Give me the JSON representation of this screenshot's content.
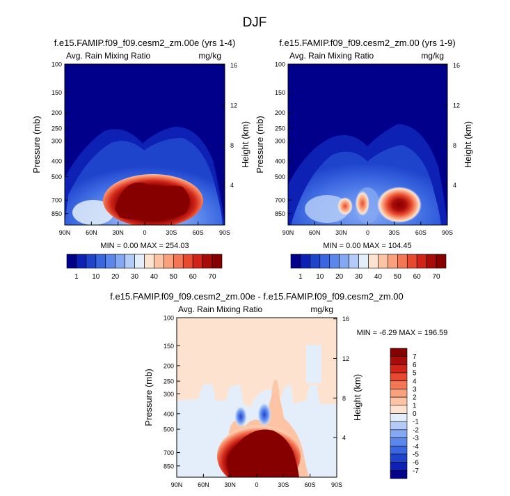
{
  "page_title": "DJF",
  "panels": [
    {
      "title": "f.e15.FAMIP.f09_f09.cesm2_zm.00e (yrs 1-4)",
      "left_label": "Avg. Rain Mixing Ratio",
      "right_label": "mg/kg",
      "stats": "MIN =  0.00  MAX = 254.03"
    },
    {
      "title": "f.e15.FAMIP.f09_f09.cesm2_zm.00 (yrs 1-9)",
      "left_label": "Avg. Rain Mixing Ratio",
      "right_label": "mg/kg",
      "stats": "MIN =  0.00  MAX = 104.45"
    },
    {
      "title": "f.e15.FAMIP.f09_f09.cesm2_zm.00e - f.e15.FAMIP.f09_f09.cesm2_zm.00",
      "left_label": "Avg. Rain Mixing Ratio",
      "right_label": "mg/kg",
      "stats": "MIN = -6.29  MAX = 196.59"
    }
  ],
  "axes": {
    "ylabel": "Pressure (mb)",
    "y2label": "Height (km)",
    "pressure_ticks": [
      100,
      150,
      200,
      250,
      300,
      400,
      500,
      700,
      850
    ],
    "height_ticks": [
      16,
      12,
      8,
      4
    ],
    "lat_ticks": [
      "90N",
      "60N",
      "30N",
      "0",
      "30S",
      "60S",
      "90S"
    ]
  },
  "colorbars": {
    "abs_labels": [
      "1",
      "10",
      "20",
      "30",
      "40",
      "50",
      "60",
      "70"
    ],
    "diff_labels": [
      "7",
      "6",
      "5",
      "4",
      "3",
      "2",
      "1",
      "0",
      "-1",
      "-2",
      "-3",
      "-4",
      "-5",
      "-6",
      "-7"
    ]
  },
  "colors": {
    "palette": [
      "#00008b",
      "#0d22b5",
      "#1f44cc",
      "#3a66e0",
      "#5b87ec",
      "#85a8f2",
      "#b3cbf6",
      "#e3eefa",
      "#fde3cf",
      "#fcc4a5",
      "#f9a07c",
      "#f47755",
      "#e84a30",
      "#cf2417",
      "#a80c08",
      "#870000"
    ]
  },
  "chart_data": [
    {
      "type": "heatmap",
      "title": "f.e15.FAMIP.f09_f09.cesm2_zm.00e (yrs 1-4)",
      "x_range": [
        "90N",
        "90S"
      ],
      "y_range_mb": [
        1000,
        100
      ],
      "units": "mg/kg",
      "levels": [
        1,
        10,
        20,
        30,
        40,
        50,
        60,
        70
      ],
      "min": 0.0,
      "max": 254.03,
      "features": [
        {
          "region": "tropics 30N-30S",
          "pressure_mb": [
            600,
            850
          ],
          "value": "> 70"
        },
        {
          "region": "troposphere",
          "pressure_mb": [
            250,
            1000
          ],
          "value": "1-40"
        }
      ]
    },
    {
      "type": "heatmap",
      "title": "f.e15.FAMIP.f09_f09.cesm2_zm.00 (yrs 1-9)",
      "x_range": [
        "90N",
        "90S"
      ],
      "y_range_mb": [
        1000,
        100
      ],
      "units": "mg/kg",
      "levels": [
        1,
        10,
        20,
        30,
        40,
        50,
        60,
        70
      ],
      "min": 0.0,
      "max": 104.45,
      "features": [
        {
          "region": "35S",
          "pressure_mb": [
            650,
            750
          ],
          "value": "> 70"
        },
        {
          "region": "25N",
          "pressure_mb": [
            650,
            750
          ],
          "value": "40-60"
        },
        {
          "region": "10N",
          "pressure_mb": [
            650,
            750
          ],
          "value": "40-60"
        }
      ]
    },
    {
      "type": "heatmap",
      "title": "f.e15.FAMIP.f09_f09.cesm2_zm.00e - f.e15.FAMIP.f09_f09.cesm2_zm.00",
      "x_range": [
        "90N",
        "90S"
      ],
      "y_range_mb": [
        1000,
        100
      ],
      "units": "mg/kg",
      "levels": [
        -7,
        -6,
        -5,
        -4,
        -3,
        -2,
        -1,
        0,
        1,
        2,
        3,
        4,
        5,
        6,
        7
      ],
      "min": -6.29,
      "max": 196.59,
      "features": [
        {
          "region": "tropics 30N-30S",
          "pressure_mb": [
            550,
            1000
          ],
          "value": "> 7"
        },
        {
          "region": "15N",
          "pressure_mb": [
            380,
            430
          ],
          "value": "-5"
        },
        {
          "region": "8S",
          "pressure_mb": [
            380,
            430
          ],
          "value": "-5"
        }
      ]
    }
  ]
}
